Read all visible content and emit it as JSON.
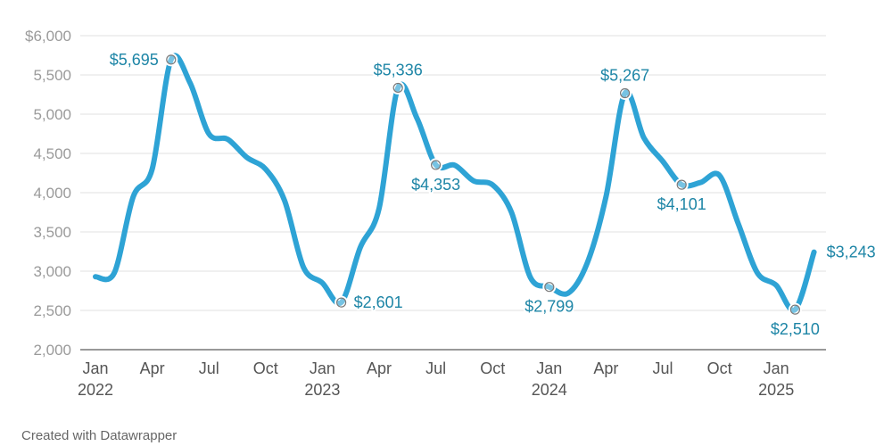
{
  "chart_data": {
    "type": "line",
    "title": "",
    "xlabel": "",
    "ylabel": "",
    "ylim": [
      2000,
      6000
    ],
    "y_ticks": [
      2000,
      2500,
      3000,
      3500,
      4000,
      4500,
      5000,
      5500,
      6000
    ],
    "y_tick_labels": [
      "2,000",
      "2,500",
      "3,000",
      "3,500",
      "4,000",
      "4,500",
      "5,000",
      "5,500",
      "$6,000"
    ],
    "x_ticks": [
      {
        "month_index": 0,
        "line1": "Jan",
        "line2": "2022"
      },
      {
        "month_index": 3,
        "line1": "Apr",
        "line2": ""
      },
      {
        "month_index": 6,
        "line1": "Jul",
        "line2": ""
      },
      {
        "month_index": 9,
        "line1": "Oct",
        "line2": ""
      },
      {
        "month_index": 12,
        "line1": "Jan",
        "line2": "2023"
      },
      {
        "month_index": 15,
        "line1": "Apr",
        "line2": ""
      },
      {
        "month_index": 18,
        "line1": "Jul",
        "line2": ""
      },
      {
        "month_index": 21,
        "line1": "Oct",
        "line2": ""
      },
      {
        "month_index": 24,
        "line1": "Jan",
        "line2": "2024"
      },
      {
        "month_index": 27,
        "line1": "Apr",
        "line2": ""
      },
      {
        "month_index": 30,
        "line1": "Jul",
        "line2": ""
      },
      {
        "month_index": 33,
        "line1": "Oct",
        "line2": ""
      },
      {
        "month_index": 36,
        "line1": "Jan",
        "line2": "2025"
      }
    ],
    "series": [
      {
        "name": "value",
        "color": "#2ea3d5",
        "x": [
          0,
          1,
          2,
          3,
          4,
          5,
          6,
          7,
          8,
          9,
          10,
          11,
          12,
          13,
          14,
          15,
          16,
          17,
          18,
          19,
          20,
          21,
          22,
          23,
          24,
          25,
          26,
          27,
          28,
          29,
          30,
          31,
          32,
          33,
          34,
          35,
          36,
          37,
          38
        ],
        "values": [
          2930,
          2980,
          3950,
          4300,
          5695,
          5400,
          4750,
          4680,
          4450,
          4300,
          3900,
          3050,
          2850,
          2601,
          3300,
          3800,
          5336,
          4950,
          4353,
          4350,
          4150,
          4100,
          3750,
          2920,
          2799,
          2720,
          3100,
          3950,
          5267,
          4700,
          4400,
          4101,
          4130,
          4220,
          3600,
          2980,
          2820,
          2510,
          3243
        ]
      }
    ],
    "annotations": [
      {
        "index": 4,
        "label": "$5,695",
        "position": "left"
      },
      {
        "index": 13,
        "label": "$2,601",
        "position": "right"
      },
      {
        "index": 16,
        "label": "$5,336",
        "position": "above"
      },
      {
        "index": 18,
        "label": "$4,353",
        "position": "below"
      },
      {
        "index": 24,
        "label": "$2,799",
        "position": "below"
      },
      {
        "index": 28,
        "label": "$5,267",
        "position": "above"
      },
      {
        "index": 31,
        "label": "$4,101",
        "position": "below"
      },
      {
        "index": 37,
        "label": "$2,510",
        "position": "below"
      },
      {
        "index": 38,
        "label": "$3,243",
        "position": "right"
      }
    ]
  },
  "footer": {
    "credit": "Created with Datawrapper"
  }
}
